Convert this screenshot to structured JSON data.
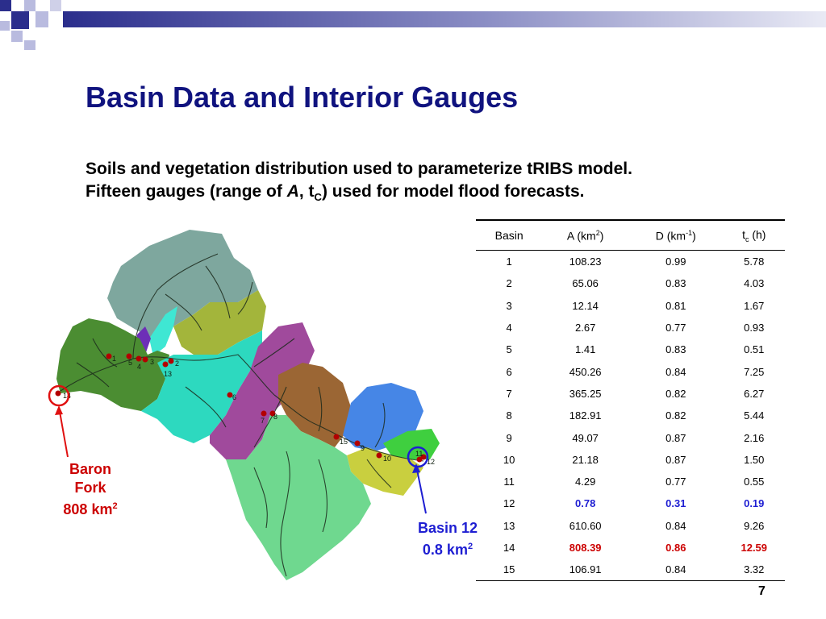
{
  "title": "Basin Data and Interior Gauges",
  "subtitle": {
    "line1": "Soils and vegetation distribution used to parameterize tRIBS model.",
    "line2_a": "Fifteen gauges (range of ",
    "line2_italic": "A",
    "line2_b": ", t",
    "line2_sub": "C",
    "line2_c": ") used for model flood forecasts."
  },
  "map_labels": {
    "baron_line1": "Baron",
    "baron_line2": "Fork",
    "baron_area": "808 km",
    "baron_exp": "2",
    "basin12_line1": "Basin 12",
    "basin12_area": "0.8 km",
    "basin12_exp": "2"
  },
  "gauges": [
    "1",
    "2",
    "3",
    "4",
    "5",
    "6",
    "7",
    "8",
    "9",
    "10",
    "11",
    "12",
    "13",
    "14",
    "15"
  ],
  "table": {
    "headers": {
      "basin": "Basin",
      "area": "A (km",
      "area_exp": "2",
      "area_close": ")",
      "density": "D (km",
      "density_exp": "-1",
      "density_close": ")",
      "tc_main": "t",
      "tc_sub": "c",
      "tc_unit": " (h)"
    },
    "rows": [
      {
        "basin": "1",
        "area": "108.23",
        "density": "0.99",
        "tc": "5.78",
        "hl": ""
      },
      {
        "basin": "2",
        "area": "65.06",
        "density": "0.83",
        "tc": "4.03",
        "hl": ""
      },
      {
        "basin": "3",
        "area": "12.14",
        "density": "0.81",
        "tc": "1.67",
        "hl": ""
      },
      {
        "basin": "4",
        "area": "2.67",
        "density": "0.77",
        "tc": "0.93",
        "hl": ""
      },
      {
        "basin": "5",
        "area": "1.41",
        "density": "0.83",
        "tc": "0.51",
        "hl": ""
      },
      {
        "basin": "6",
        "area": "450.26",
        "density": "0.84",
        "tc": "7.25",
        "hl": ""
      },
      {
        "basin": "7",
        "area": "365.25",
        "density": "0.82",
        "tc": "6.27",
        "hl": ""
      },
      {
        "basin": "8",
        "area": "182.91",
        "density": "0.82",
        "tc": "5.44",
        "hl": ""
      },
      {
        "basin": "9",
        "area": "49.07",
        "density": "0.87",
        "tc": "2.16",
        "hl": ""
      },
      {
        "basin": "10",
        "area": "21.18",
        "density": "0.87",
        "tc": "1.50",
        "hl": ""
      },
      {
        "basin": "11",
        "area": "4.29",
        "density": "0.77",
        "tc": "0.55",
        "hl": ""
      },
      {
        "basin": "12",
        "area": "0.78",
        "density": "0.31",
        "tc": "0.19",
        "hl": "blue"
      },
      {
        "basin": "13",
        "area": "610.60",
        "density": "0.84",
        "tc": "9.26",
        "hl": ""
      },
      {
        "basin": "14",
        "area": "808.39",
        "density": "0.86",
        "tc": "12.59",
        "hl": "red"
      },
      {
        "basin": "15",
        "area": "106.91",
        "density": "0.84",
        "tc": "3.32",
        "hl": ""
      }
    ]
  },
  "colors": {
    "title": "#10137f",
    "highlight_blue": "#1e1ed2",
    "highlight_red": "#cc0000",
    "header_dark": "#2b2e8c",
    "header_light": "#b9bbdf"
  },
  "page_number": "7"
}
